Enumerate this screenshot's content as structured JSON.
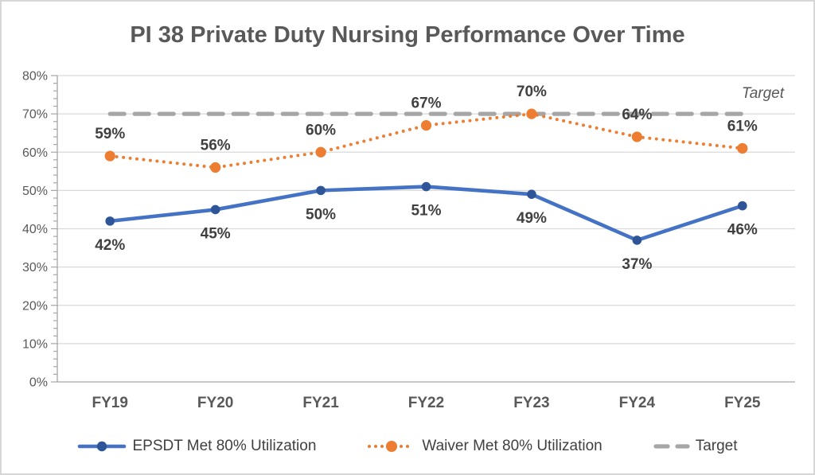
{
  "chart_data": {
    "type": "line",
    "title": "PI 38 Private Duty Nursing Performance Over Time",
    "categories": [
      "FY19",
      "FY20",
      "FY21",
      "FY22",
      "FY23",
      "FY24",
      "FY25"
    ],
    "series": [
      {
        "name": "Target",
        "values": [
          70,
          70,
          70,
          70,
          70,
          70,
          70
        ],
        "labels": [],
        "color": "#a6a6a6",
        "style": "dashed",
        "marker": false,
        "label_position": "none"
      },
      {
        "name": "Waiver Met 80% Utilization",
        "values": [
          59,
          56,
          60,
          67,
          70,
          64,
          61
        ],
        "labels": [
          "59%",
          "56%",
          "60%",
          "67%",
          "70%",
          "64%",
          "61%"
        ],
        "color": "#ed7d31",
        "marker_color": "#ed7d31",
        "style": "dotted",
        "marker": true,
        "label_position": "above"
      },
      {
        "name": "EPSDT Met 80% Utilization",
        "values": [
          42,
          45,
          50,
          51,
          49,
          37,
          46
        ],
        "labels": [
          "42%",
          "45%",
          "50%",
          "51%",
          "49%",
          "37%",
          "46%"
        ],
        "color": "#4472c4",
        "marker_color": "#2e5597",
        "style": "solid",
        "marker": true,
        "label_position": "below"
      }
    ],
    "y_axis": {
      "min": 0,
      "max": 80,
      "major_step": 10,
      "minor_step": 2,
      "tick_labels": [
        "0%",
        "10%",
        "20%",
        "30%",
        "40%",
        "50%",
        "60%",
        "70%",
        "80%"
      ]
    },
    "annotations": [
      {
        "text": "Target",
        "style": "italic",
        "value": 70
      }
    ],
    "grid": true,
    "legend_position": "bottom",
    "legend_order": [
      "EPSDT Met 80% Utilization",
      "Waiver Met 80% Utilization",
      "Target"
    ],
    "colors": {
      "gridline": "#d9d9d9",
      "axis": "#a6a6a6",
      "data_label": "#404040",
      "axis_label": "#595959",
      "title": "#595959"
    }
  }
}
